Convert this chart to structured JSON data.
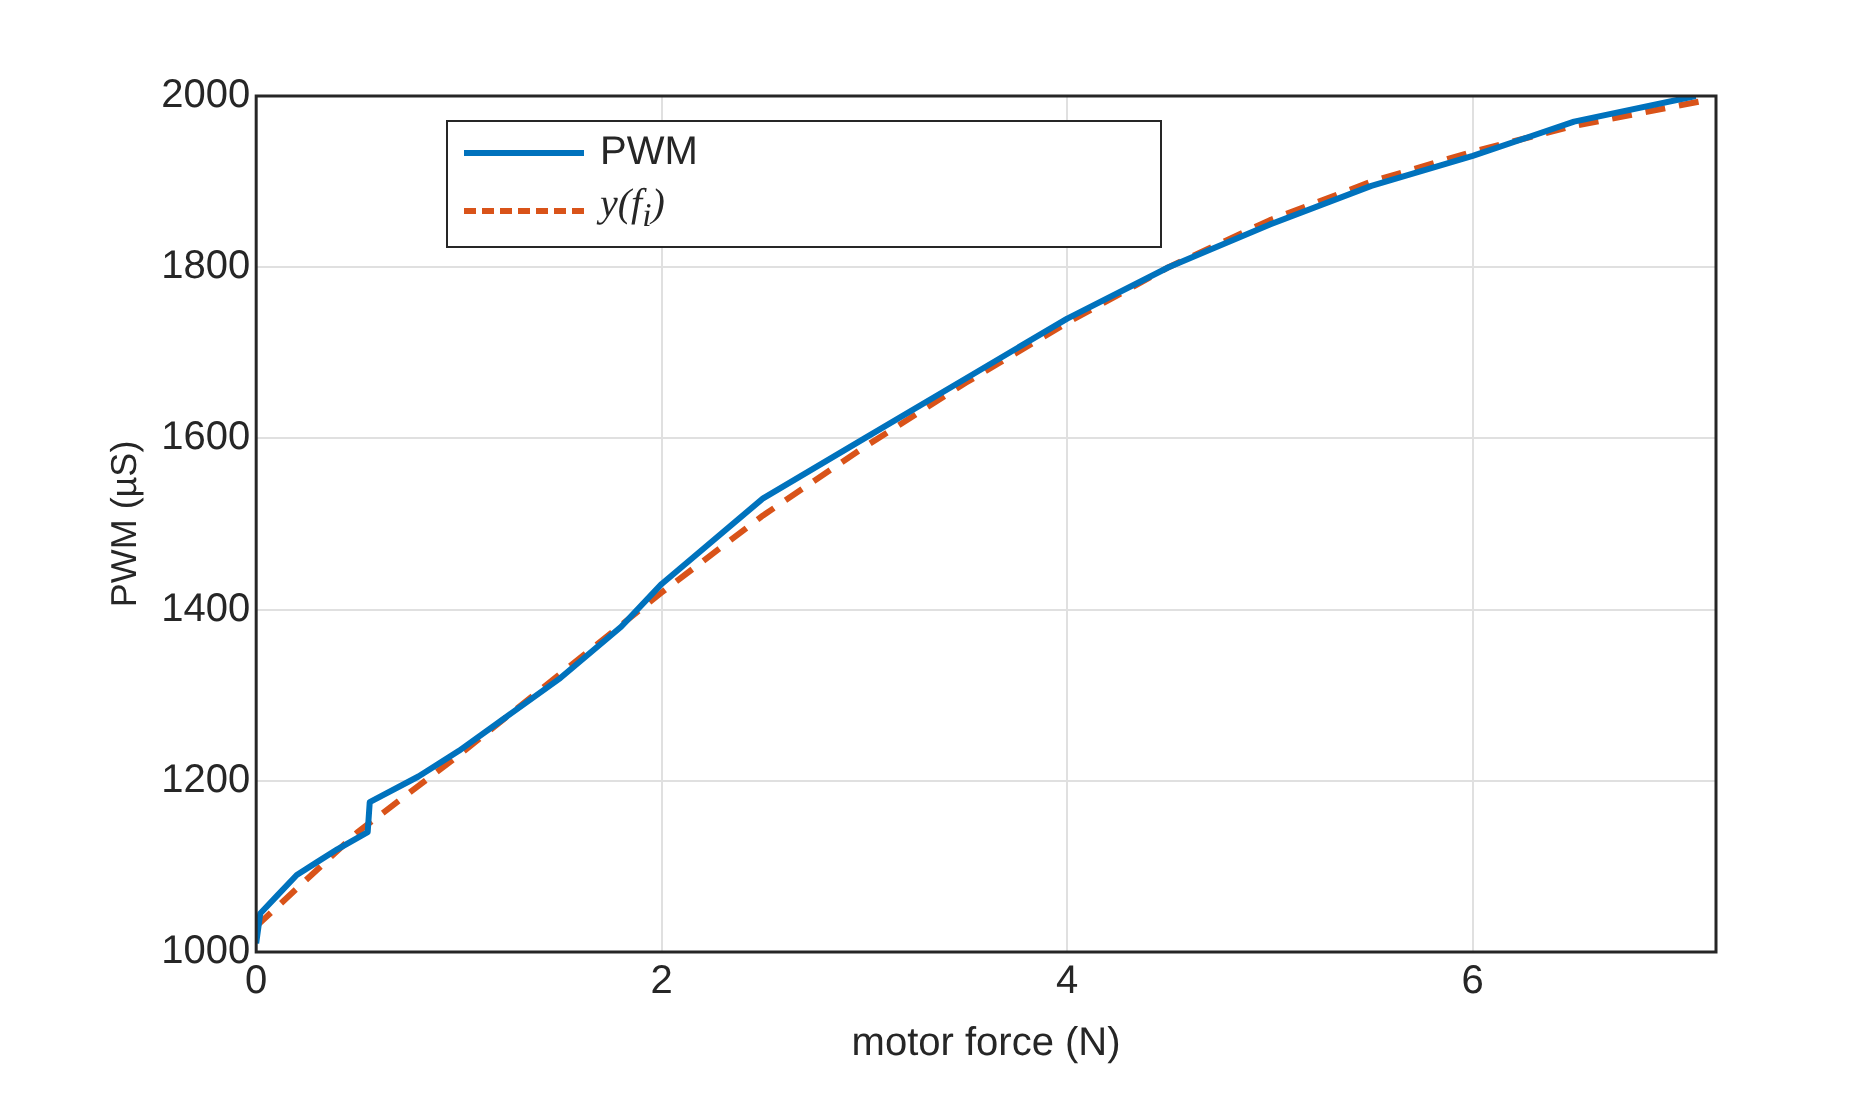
{
  "chart_data": {
    "type": "line",
    "xlabel": "motor force (N)",
    "ylabel": "PWM (µS)",
    "xlim": [
      0,
      7.2
    ],
    "ylim": [
      1000,
      2000
    ],
    "xticks": [
      0,
      2,
      4,
      6
    ],
    "yticks": [
      1000,
      1200,
      1400,
      1600,
      1800,
      2000
    ],
    "grid": true,
    "legend": "top left",
    "marker": "none",
    "series": [
      {
        "name": "PWM",
        "color": "#0072bd",
        "line_style": "solid",
        "x": [
          0,
          0.02,
          0.1,
          0.2,
          0.3,
          0.4,
          0.55,
          0.56,
          0.8,
          1.0,
          1.5,
          1.8,
          2.0,
          2.5,
          3.0,
          3.5,
          4.0,
          4.5,
          5.0,
          5.5,
          6.0,
          6.5,
          7.1
        ],
        "values": [
          1010,
          1045,
          1065,
          1090,
          1105,
          1120,
          1140,
          1175,
          1205,
          1235,
          1320,
          1380,
          1430,
          1530,
          1600,
          1670,
          1740,
          1800,
          1850,
          1895,
          1930,
          1970,
          2000
        ]
      },
      {
        "name": "y(f$_{i}$)",
        "color": "#d95319",
        "line_style": "dashed",
        "x": [
          0,
          0.5,
          1.0,
          1.5,
          2.0,
          2.5,
          3.0,
          3.5,
          4.0,
          4.5,
          5.0,
          5.5,
          6.0,
          6.5,
          7.15
        ],
        "values": [
          1030,
          1140,
          1230,
          1325,
          1420,
          1510,
          1590,
          1665,
          1735,
          1800,
          1855,
          1900,
          1935,
          1965,
          1995
        ]
      }
    ]
  }
}
